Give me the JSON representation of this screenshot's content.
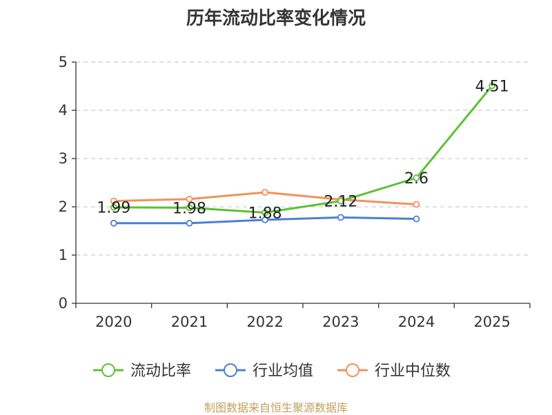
{
  "chart_data": {
    "type": "line",
    "title": "历年流动比率变化情况",
    "categories": [
      "2020",
      "2021",
      "2022",
      "2023",
      "2024",
      "2025"
    ],
    "ylim": [
      0,
      5
    ],
    "yticks": [
      0,
      1,
      2,
      3,
      4,
      5
    ],
    "grid": true,
    "legend_position": "bottom",
    "series": [
      {
        "name": "流动比率",
        "color": "#5cc133",
        "values": [
          1.99,
          1.98,
          1.88,
          2.12,
          2.6,
          4.51
        ],
        "labels": [
          "1.99",
          "1.98",
          "1.88",
          "2.12",
          "2.6",
          "4.51"
        ]
      },
      {
        "name": "行业均值",
        "color": "#4a7fd6",
        "values": [
          1.66,
          1.66,
          1.73,
          1.78,
          1.75,
          null
        ]
      },
      {
        "name": "行业中位数",
        "color": "#f39059",
        "values": [
          2.12,
          2.16,
          2.3,
          2.15,
          2.05,
          null
        ]
      }
    ]
  },
  "source_text": "制图数据来自恒生聚源数据库"
}
